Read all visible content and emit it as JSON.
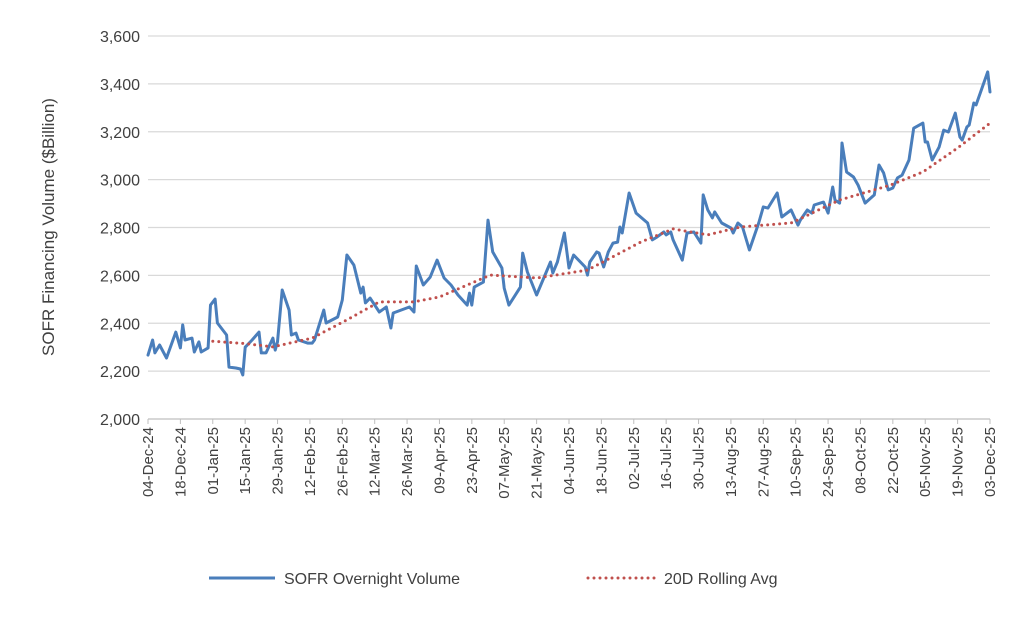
{
  "chart_data": {
    "type": "line",
    "title": "",
    "xlabel": "",
    "ylabel": "SOFR Financing Volume  ($Billion)",
    "ylim": [
      2000,
      3600
    ],
    "yticks": [
      "2,000",
      "2,200",
      "2,400",
      "2,600",
      "2,800",
      "3,000",
      "3,200",
      "3,400",
      "3,600"
    ],
    "ytick_values": [
      2000,
      2200,
      2400,
      2600,
      2800,
      3000,
      3200,
      3400,
      3600
    ],
    "xlim": [
      "2024-12-04",
      "2025-12-03"
    ],
    "xticks": [
      "04-Dec-24",
      "18-Dec-24",
      "01-Jan-25",
      "15-Jan-25",
      "29-Jan-25",
      "12-Feb-25",
      "26-Feb-25",
      "12-Mar-25",
      "26-Mar-25",
      "09-Apr-25",
      "23-Apr-25",
      "07-May-25",
      "21-May-25",
      "04-Jun-25",
      "18-Jun-25",
      "02-Jul-25",
      "16-Jul-25",
      "30-Jul-25",
      "13-Aug-25",
      "27-Aug-25",
      "10-Sep-25",
      "24-Sep-25",
      "08-Oct-25",
      "22-Oct-25",
      "05-Nov-25",
      "19-Nov-25",
      "03-Dec-25"
    ],
    "grid": "horizontal",
    "legend_position": "bottom",
    "series": [
      {
        "name": "SOFR Overnight Volume",
        "color": "#4a7ebb",
        "style": "solid",
        "x": [
          "2024-12-04",
          "2024-12-06",
          "2024-12-07",
          "2024-12-09",
          "2024-12-12",
          "2024-12-16",
          "2024-12-18",
          "2024-12-19",
          "2024-12-20",
          "2024-12-23",
          "2024-12-24",
          "2024-12-26",
          "2024-12-27",
          "2024-12-30",
          "2024-12-31",
          "2025-01-02",
          "2025-01-03",
          "2025-01-07",
          "2025-01-08",
          "2025-01-11",
          "2025-01-13",
          "2025-01-14",
          "2025-01-15",
          "2025-01-18",
          "2025-01-21",
          "2025-01-22",
          "2025-01-24",
          "2025-01-27",
          "2025-01-28",
          "2025-01-29",
          "2025-01-31",
          "2025-02-03",
          "2025-02-04",
          "2025-02-06",
          "2025-02-07",
          "2025-02-11",
          "2025-02-13",
          "2025-02-14",
          "2025-02-18",
          "2025-02-19",
          "2025-02-24",
          "2025-02-26",
          "2025-02-28",
          "2025-03-03",
          "2025-03-06",
          "2025-03-07",
          "2025-03-08",
          "2025-03-10",
          "2025-03-14",
          "2025-03-17",
          "2025-03-19",
          "2025-03-20",
          "2025-03-27",
          "2025-03-29",
          "2025-03-30",
          "2025-04-02",
          "2025-04-05",
          "2025-04-08",
          "2025-04-11",
          "2025-04-14",
          "2025-04-17",
          "2025-04-21",
          "2025-04-22",
          "2025-04-23",
          "2025-04-24",
          "2025-04-28",
          "2025-04-30",
          "2025-05-02",
          "2025-05-06",
          "2025-05-07",
          "2025-05-09",
          "2025-05-14",
          "2025-05-15",
          "2025-05-17",
          "2025-05-21",
          "2025-05-27",
          "2025-05-28",
          "2025-05-30",
          "2025-06-02",
          "2025-06-04",
          "2025-06-06",
          "2025-06-11",
          "2025-06-12",
          "2025-06-13",
          "2025-06-16",
          "2025-06-17",
          "2025-06-19",
          "2025-06-21",
          "2025-06-23",
          "2025-06-25",
          "2025-06-26",
          "2025-06-27",
          "2025-06-30",
          "2025-07-03",
          "2025-07-08",
          "2025-07-10",
          "2025-07-12",
          "2025-07-15",
          "2025-07-16",
          "2025-07-18",
          "2025-07-19",
          "2025-07-23",
          "2025-07-25",
          "2025-07-28",
          "2025-07-31",
          "2025-08-01",
          "2025-08-03",
          "2025-08-05",
          "2025-08-06",
          "2025-08-09",
          "2025-08-13",
          "2025-08-14",
          "2025-08-16",
          "2025-08-18",
          "2025-08-21",
          "2025-08-25",
          "2025-08-27",
          "2025-08-29",
          "2025-09-02",
          "2025-09-04",
          "2025-09-08",
          "2025-09-11",
          "2025-09-12",
          "2025-09-15",
          "2025-09-17",
          "2025-09-18",
          "2025-09-22",
          "2025-09-24",
          "2025-09-26",
          "2025-09-27",
          "2025-09-29",
          "2025-09-30",
          "2025-10-02",
          "2025-10-05",
          "2025-10-07",
          "2025-10-10",
          "2025-10-14",
          "2025-10-16",
          "2025-10-18",
          "2025-10-20",
          "2025-10-22",
          "2025-10-24",
          "2025-10-26",
          "2025-10-28",
          "2025-10-29",
          "2025-10-31",
          "2025-11-04",
          "2025-11-05",
          "2025-11-06",
          "2025-11-08",
          "2025-11-11",
          "2025-11-13",
          "2025-11-15",
          "2025-11-18",
          "2025-11-20",
          "2025-11-21",
          "2025-11-23",
          "2025-11-24",
          "2025-11-26",
          "2025-11-27",
          "2025-12-02",
          "2025-12-03"
        ],
        "values": [
          2267,
          2330,
          2276,
          2309,
          2255,
          2363,
          2297,
          2393,
          2330,
          2338,
          2280,
          2322,
          2280,
          2297,
          2476,
          2501,
          2401,
          2351,
          2217,
          2213,
          2209,
          2184,
          2300,
          2330,
          2363,
          2276,
          2276,
          2338,
          2288,
          2322,
          2539,
          2455,
          2351,
          2359,
          2330,
          2317,
          2317,
          2330,
          2455,
          2401,
          2426,
          2497,
          2685,
          2643,
          2526,
          2551,
          2485,
          2505,
          2447,
          2468,
          2380,
          2443,
          2468,
          2447,
          2639,
          2560,
          2593,
          2664,
          2589,
          2560,
          2518,
          2476,
          2526,
          2476,
          2551,
          2572,
          2831,
          2698,
          2631,
          2547,
          2476,
          2551,
          2693,
          2614,
          2518,
          2656,
          2610,
          2656,
          2777,
          2631,
          2685,
          2635,
          2601,
          2656,
          2698,
          2693,
          2635,
          2698,
          2735,
          2739,
          2802,
          2777,
          2944,
          2860,
          2819,
          2748,
          2760,
          2781,
          2769,
          2781,
          2748,
          2664,
          2777,
          2781,
          2735,
          2936,
          2873,
          2840,
          2865,
          2819,
          2798,
          2777,
          2819,
          2802,
          2706,
          2819,
          2886,
          2881,
          2944,
          2844,
          2873,
          2810,
          2831,
          2873,
          2860,
          2894,
          2906,
          2860,
          2969,
          2915,
          2902,
          3153,
          3032,
          3011,
          2977,
          2902,
          2936,
          3061,
          3028,
          2957,
          2965,
          3007,
          3019,
          3061,
          3082,
          3215,
          3236,
          3157,
          3157,
          3082,
          3136,
          3207,
          3199,
          3278,
          3178,
          3165,
          3220,
          3228,
          3320,
          3312,
          3450,
          3366
        ]
      },
      {
        "name": "20D Rolling Avg",
        "color": "#c0504d",
        "style": "dotted",
        "x": [
          "2025-01-01",
          "2025-01-15",
          "2025-01-27",
          "2025-02-13",
          "2025-02-28",
          "2025-03-14",
          "2025-03-29",
          "2025-04-09",
          "2025-05-01",
          "2025-05-21",
          "2025-06-12",
          "2025-07-05",
          "2025-07-19",
          "2025-08-03",
          "2025-08-17",
          "2025-09-08",
          "2025-09-29",
          "2025-10-21",
          "2025-11-04",
          "2025-11-19",
          "2025-12-03"
        ],
        "values": [
          2325,
          2315,
          2301,
          2338,
          2414,
          2489,
          2489,
          2510,
          2601,
          2589,
          2622,
          2739,
          2794,
          2769,
          2802,
          2819,
          2915,
          2977,
          3032,
          3132,
          3236
        ]
      }
    ]
  }
}
